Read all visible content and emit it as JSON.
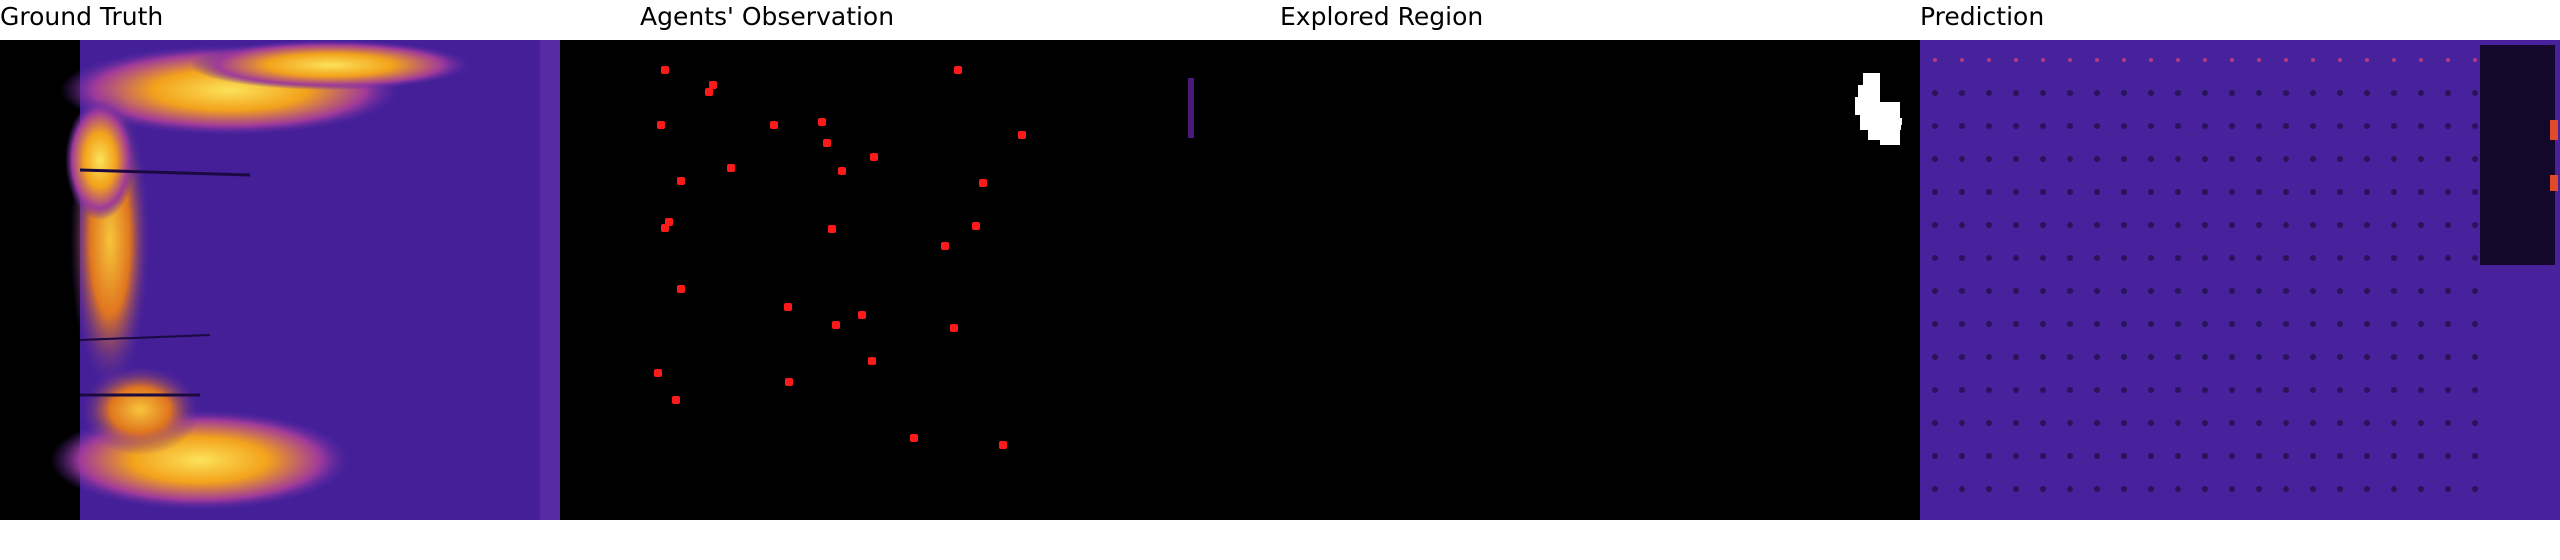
{
  "titles": {
    "ground_truth": "Ground Truth",
    "observation": "Agents' Observation",
    "explored": "Explored Region",
    "prediction": "Prediction"
  },
  "colors": {
    "background": "#000000",
    "heat_low": "#3b1a8f",
    "heat_mid": "#5a2aa8",
    "heat_high": "#f3a21b",
    "heat_peak": "#fbe35a",
    "agent_marker": "#ff1a1a",
    "explored_mask": "#ffffff"
  },
  "agents_count": 30
}
